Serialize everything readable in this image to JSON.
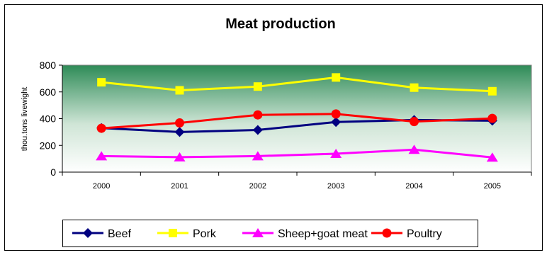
{
  "chart_data": {
    "type": "line",
    "title": "Meat production",
    "xlabel": "",
    "ylabel": "thou.tons livewight",
    "categories": [
      "2000",
      "2001",
      "2002",
      "2003",
      "2004",
      "2005"
    ],
    "ylim": [
      0,
      800
    ],
    "yticks": [
      0,
      200,
      400,
      600,
      800
    ],
    "grid": false,
    "legend": "bottom",
    "plot_background": "gradient green-to-white",
    "series": [
      {
        "name": "Beef",
        "color": "#000080",
        "marker": "diamond",
        "values": [
          330,
          300,
          315,
          375,
          390,
          385
        ]
      },
      {
        "name": "Pork",
        "color": "#ffff00",
        "marker": "square",
        "values": [
          672,
          612,
          640,
          708,
          632,
          605
        ]
      },
      {
        "name": "Sheep+goat meat",
        "color": "#ff00ff",
        "marker": "triangle",
        "values": [
          120,
          112,
          120,
          138,
          168,
          110
        ]
      },
      {
        "name": "Poultry",
        "color": "#ff0000",
        "marker": "circle",
        "values": [
          328,
          368,
          428,
          435,
          378,
          402
        ]
      }
    ]
  }
}
